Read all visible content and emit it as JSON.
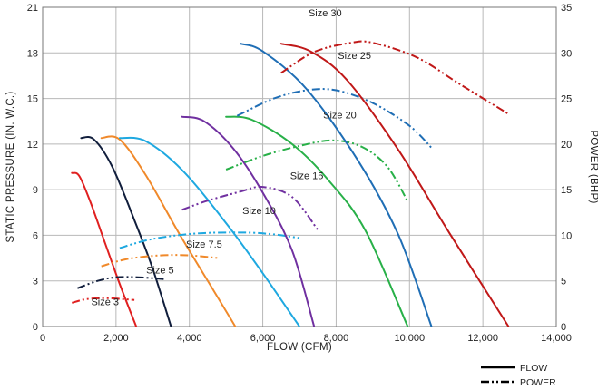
{
  "chart_data": {
    "type": "line",
    "xlabel": "FLOW (CFM)",
    "ylabel_left": "STATIC PRESSURE (IN. W.C.)",
    "ylabel_right": "POWER (BHP)",
    "xlim": [
      0,
      14000
    ],
    "ylim_left": [
      0,
      21
    ],
    "ylim_right": [
      0,
      35
    ],
    "xticks": [
      0,
      2000,
      4000,
      6000,
      8000,
      10000,
      12000,
      14000
    ],
    "xtick_labels": [
      "0",
      "2,000",
      "4,000",
      "6,000",
      "8,000",
      "10,000",
      "12,000",
      "14,000"
    ],
    "yticks_left": [
      0,
      3,
      6,
      9,
      12,
      15,
      18,
      21
    ],
    "yticks_right": [
      0,
      5,
      10,
      15,
      20,
      25,
      30,
      35
    ],
    "grid": true,
    "legend": {
      "placement": "bottom-right",
      "items": [
        {
          "label": "FLOW",
          "style": "solid"
        },
        {
          "label": "POWER",
          "style": "dash-dot-dot"
        }
      ]
    },
    "series": [
      {
        "name": "Size 3",
        "color": "#e02020",
        "flow": [
          [
            800,
            10.1
          ],
          [
            1000,
            9.9
          ],
          [
            1300,
            8.2
          ],
          [
            1700,
            5.5
          ],
          [
            2100,
            2.8
          ],
          [
            2550,
            0
          ]
        ],
        "power": [
          [
            800,
            2.6
          ],
          [
            1200,
            3.0
          ],
          [
            1800,
            3.1
          ],
          [
            2500,
            2.9
          ]
        ]
      },
      {
        "name": "Size 5",
        "color": "#111e3c",
        "flow": [
          [
            1050,
            12.4
          ],
          [
            1400,
            12.3
          ],
          [
            1900,
            10.5
          ],
          [
            2500,
            7.0
          ],
          [
            3000,
            3.8
          ],
          [
            3500,
            0
          ]
        ],
        "power": [
          [
            950,
            4.2
          ],
          [
            1500,
            5.0
          ],
          [
            2000,
            5.4
          ],
          [
            2600,
            5.4
          ],
          [
            3300,
            5.2
          ]
        ]
      },
      {
        "name": "Size 7.5",
        "color": "#f0892a",
        "flow": [
          [
            1600,
            12.4
          ],
          [
            2100,
            12.3
          ],
          [
            2800,
            10.0
          ],
          [
            3700,
            6.2
          ],
          [
            4600,
            2.6
          ],
          [
            5250,
            0
          ]
        ],
        "power": [
          [
            1600,
            6.6
          ],
          [
            2300,
            7.4
          ],
          [
            3200,
            7.8
          ],
          [
            4000,
            7.8
          ],
          [
            4800,
            7.5
          ]
        ]
      },
      {
        "name": "Size 10",
        "color": "#1ea8e0",
        "flow": [
          [
            2100,
            12.4
          ],
          [
            2800,
            12.2
          ],
          [
            3800,
            10.3
          ],
          [
            5000,
            6.8
          ],
          [
            6000,
            3.5
          ],
          [
            7000,
            0
          ]
        ],
        "power": [
          [
            2100,
            8.6
          ],
          [
            3000,
            9.6
          ],
          [
            4200,
            10.2
          ],
          [
            5500,
            10.3
          ],
          [
            6300,
            10.1
          ],
          [
            7000,
            9.7
          ]
        ]
      },
      {
        "name": "Size 15",
        "color": "#7030a0",
        "flow": [
          [
            3800,
            13.8
          ],
          [
            4400,
            13.5
          ],
          [
            5200,
            11.7
          ],
          [
            6000,
            8.8
          ],
          [
            6800,
            5.0
          ],
          [
            7400,
            0
          ]
        ],
        "power": [
          [
            3800,
            12.8
          ],
          [
            4500,
            13.8
          ],
          [
            5400,
            14.8
          ],
          [
            6000,
            15.3
          ],
          [
            6800,
            14.2
          ],
          [
            7500,
            10.6
          ]
        ]
      },
      {
        "name": "Size 20",
        "color": "#28b048",
        "flow": [
          [
            5000,
            13.8
          ],
          [
            5700,
            13.6
          ],
          [
            6800,
            12.0
          ],
          [
            7800,
            9.6
          ],
          [
            8800,
            6.3
          ],
          [
            9950,
            0
          ]
        ],
        "power": [
          [
            5000,
            17.2
          ],
          [
            6000,
            18.7
          ],
          [
            7000,
            19.8
          ],
          [
            7900,
            20.4
          ],
          [
            8700,
            19.7
          ],
          [
            9400,
            17.5
          ],
          [
            9950,
            13.7
          ]
        ]
      },
      {
        "name": "Size 25",
        "color": "#1f6eb5",
        "flow": [
          [
            5400,
            18.6
          ],
          [
            6000,
            18.1
          ],
          [
            7200,
            15.6
          ],
          [
            8600,
            10.9
          ],
          [
            9700,
            6.0
          ],
          [
            10600,
            0
          ]
        ],
        "power": [
          [
            5300,
            23.1
          ],
          [
            6300,
            25.0
          ],
          [
            7200,
            25.9
          ],
          [
            8000,
            25.9
          ],
          [
            9000,
            24.5
          ],
          [
            10000,
            22.0
          ],
          [
            10600,
            19.6
          ]
        ]
      },
      {
        "name": "Size 30",
        "color": "#c01818",
        "flow": [
          [
            6500,
            18.6
          ],
          [
            7300,
            18.1
          ],
          [
            8300,
            16.2
          ],
          [
            9700,
            11.6
          ],
          [
            11100,
            6.1
          ],
          [
            12700,
            0
          ]
        ],
        "power": [
          [
            6500,
            27.8
          ],
          [
            7400,
            30.1
          ],
          [
            8400,
            31.1
          ],
          [
            9000,
            31.1
          ],
          [
            10200,
            29.5
          ],
          [
            11400,
            26.5
          ],
          [
            12700,
            23.3
          ]
        ]
      }
    ],
    "annotations": [
      {
        "text": "Size 3",
        "x": 1700,
        "y": 1.4
      },
      {
        "text": "Size 5",
        "x": 3200,
        "y": 3.5
      },
      {
        "text": "Size 7.5",
        "x": 4400,
        "y": 5.2
      },
      {
        "text": "Size 10",
        "x": 5900,
        "y": 7.4
      },
      {
        "text": "Size 15",
        "x": 7200,
        "y": 9.7
      },
      {
        "text": "Size 20",
        "x": 8100,
        "y": 13.7
      },
      {
        "text": "Size 25",
        "x": 8500,
        "y": 17.6
      },
      {
        "text": "Size 30",
        "x": 7700,
        "y": 20.4
      }
    ]
  }
}
